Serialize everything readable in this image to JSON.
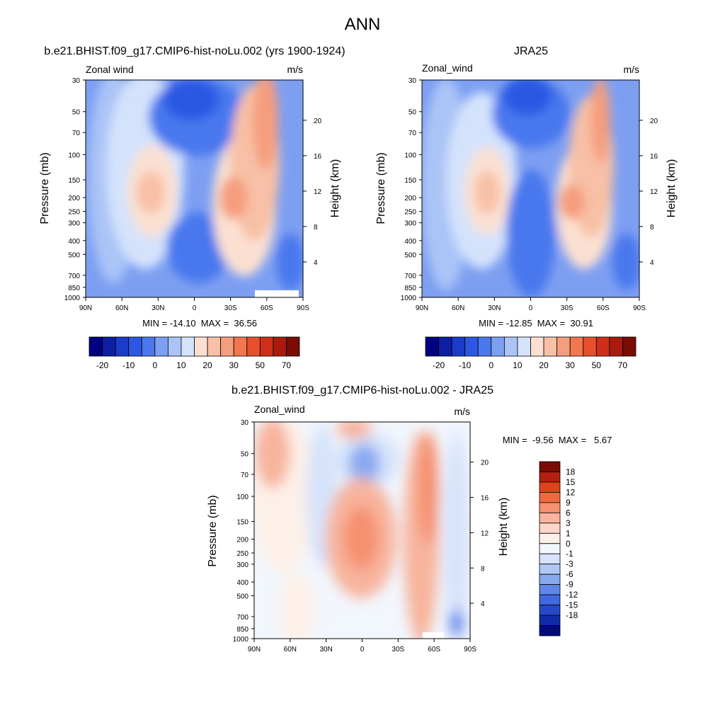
{
  "figure_title": "ANN",
  "chart_data": [
    {
      "id": "model",
      "type": "heatmap",
      "title": "b.e21.BHIST.f09_g17.CMIP6-hist-noLu.002 (yrs 1900-1924)",
      "variable": "Zonal wind",
      "units": "m/s",
      "ylabel": "Pressure (mb)",
      "y2label": "Height (km)",
      "y_scale": "log",
      "ylim": [
        1000,
        30
      ],
      "x_ticks": [
        "90N",
        "60N",
        "30N",
        "0",
        "30S",
        "60S",
        "90S"
      ],
      "y_ticks": [
        "30",
        "50",
        "70",
        "100",
        "150",
        "200",
        "250",
        "300",
        "400",
        "500",
        "700",
        "850",
        "1000"
      ],
      "y2_ticks": [
        "20",
        "16",
        "12",
        "8",
        "4"
      ],
      "stats": "MIN = -14.10  MAX =  36.56",
      "min": -14.1,
      "max": 36.56,
      "colorbar_labels": [
        "-20",
        "-10",
        "0",
        "10",
        "20",
        "30",
        "50",
        "70"
      ],
      "colorbar_orientation": "horizontal"
    },
    {
      "id": "obs",
      "type": "heatmap",
      "title": "JRA25",
      "variable": "Zonal_wind",
      "units": "m/s",
      "ylabel": "Pressure (mb)",
      "y2label": "Height (km)",
      "y_scale": "log",
      "ylim": [
        1000,
        30
      ],
      "x_ticks": [
        "90N",
        "60N",
        "30N",
        "0",
        "30S",
        "60S",
        "90S"
      ],
      "y_ticks": [
        "30",
        "50",
        "70",
        "100",
        "150",
        "200",
        "250",
        "300",
        "400",
        "500",
        "700",
        "850",
        "1000"
      ],
      "y2_ticks": [
        "20",
        "16",
        "12",
        "8",
        "4"
      ],
      "stats": "MIN = -12.85  MAX =  30.91",
      "min": -12.85,
      "max": 30.91,
      "colorbar_labels": [
        "-20",
        "-10",
        "0",
        "10",
        "20",
        "30",
        "50",
        "70"
      ],
      "colorbar_orientation": "horizontal"
    },
    {
      "id": "diff",
      "type": "heatmap",
      "title": "b.e21.BHIST.f09_g17.CMIP6-hist-noLu.002 - JRA25",
      "variable": "Zonal_wind",
      "units": "m/s",
      "ylabel": "Pressure (mb)",
      "y2label": "Height (km)",
      "y_scale": "log",
      "ylim": [
        1000,
        30
      ],
      "x_ticks": [
        "90N",
        "60N",
        "30N",
        "0",
        "30S",
        "60S",
        "90S"
      ],
      "y_ticks": [
        "30",
        "50",
        "70",
        "100",
        "150",
        "200",
        "250",
        "300",
        "400",
        "500",
        "700",
        "850",
        "1000"
      ],
      "y2_ticks": [
        "20",
        "16",
        "12",
        "8",
        "4"
      ],
      "stats": "MIN =  -9.56  MAX =   5.67",
      "min": -9.56,
      "max": 5.67,
      "colorbar_labels": [
        "18",
        "15",
        "12",
        "9",
        "6",
        "3",
        "1",
        "0",
        "-1",
        "-3",
        "-6",
        "-9",
        "-12",
        "-15",
        "-18"
      ],
      "colorbar_orientation": "vertical"
    }
  ],
  "colors": {
    "full_scale": [
      "#000080",
      "#0d1fa3",
      "#1a3cc7",
      "#2b58e3",
      "#4a78ee",
      "#7d9ff2",
      "#aac4f7",
      "#d4e3fc",
      "#fbe0d2",
      "#f8c0a6",
      "#f59e7d",
      "#f07750",
      "#e6502b",
      "#cc3018",
      "#a81b0d",
      "#7a0c05"
    ],
    "diff_scale": [
      "#7a0c05",
      "#b3200d",
      "#e0421e",
      "#f06a40",
      "#f59070",
      "#f8b49c",
      "#fbd6c6",
      "#fdf0e8",
      "#f2f6fd",
      "#d6e3fa",
      "#b0c8f5",
      "#88a8f0",
      "#5f86ea",
      "#3f68e3",
      "#2448c7",
      "#0f2ca8",
      "#000a80"
    ]
  }
}
